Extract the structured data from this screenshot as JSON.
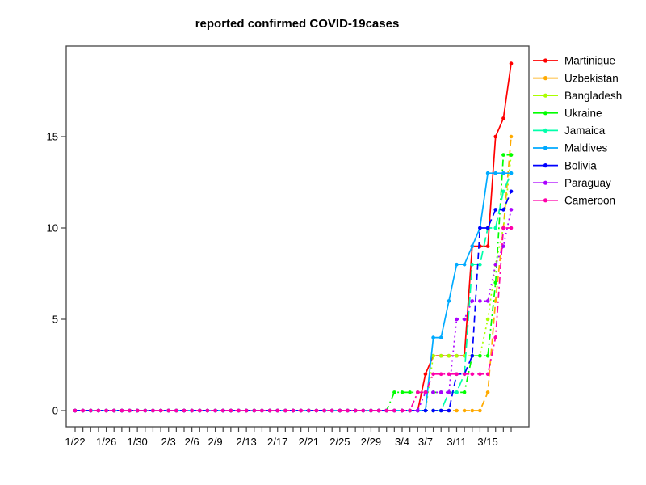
{
  "chart_data": {
    "type": "line",
    "title": "reported confirmed COVID-19cases",
    "xlabel": "",
    "ylabel": "",
    "grid": false,
    "legend_position": "right-outside",
    "marker": "filled-circle",
    "axis_color": "#444444",
    "text_color": "#000000",
    "yticks": [
      0,
      5,
      10,
      15
    ],
    "ylim": [
      0,
      20
    ],
    "x": [
      "1/22",
      "1/23",
      "1/24",
      "1/25",
      "1/26",
      "1/27",
      "1/28",
      "1/29",
      "1/30",
      "1/31",
      "2/1",
      "2/2",
      "2/3",
      "2/4",
      "2/5",
      "2/6",
      "2/7",
      "2/8",
      "2/9",
      "2/10",
      "2/11",
      "2/12",
      "2/13",
      "2/14",
      "2/15",
      "2/16",
      "2/17",
      "2/18",
      "2/19",
      "2/20",
      "2/21",
      "2/22",
      "2/23",
      "2/24",
      "2/25",
      "2/26",
      "2/27",
      "2/28",
      "2/29",
      "3/1",
      "3/2",
      "3/3",
      "3/4",
      "3/5",
      "3/6",
      "3/7",
      "3/8",
      "3/9",
      "3/10",
      "3/11",
      "3/12",
      "3/13",
      "3/14",
      "3/15",
      "3/16",
      "3/17",
      "3/18"
    ],
    "x_tick_labels": [
      "1/22",
      "1/26",
      "1/30",
      "2/3",
      "2/6",
      "2/9",
      "2/13",
      "2/17",
      "2/21",
      "2/25",
      "2/29",
      "3/4",
      "3/7",
      "3/11",
      "3/15"
    ],
    "series": [
      {
        "name": "Martinique",
        "color": "#FF0000",
        "line_style": "solid",
        "values": [
          0,
          0,
          0,
          0,
          0,
          0,
          0,
          0,
          0,
          0,
          0,
          0,
          0,
          0,
          0,
          0,
          0,
          0,
          0,
          0,
          0,
          0,
          0,
          0,
          0,
          0,
          0,
          0,
          0,
          0,
          0,
          0,
          0,
          0,
          0,
          0,
          0,
          0,
          0,
          0,
          0,
          0,
          0,
          0,
          0,
          2,
          3,
          3,
          3,
          3,
          3,
          9,
          9,
          9,
          15,
          16,
          19
        ]
      },
      {
        "name": "Uzbekistan",
        "color": "#FFAA00",
        "line_style": "dashed",
        "values": [
          0,
          0,
          0,
          0,
          0,
          0,
          0,
          0,
          0,
          0,
          0,
          0,
          0,
          0,
          0,
          0,
          0,
          0,
          0,
          0,
          0,
          0,
          0,
          0,
          0,
          0,
          0,
          0,
          0,
          0,
          0,
          0,
          0,
          0,
          0,
          0,
          0,
          0,
          0,
          0,
          0,
          0,
          0,
          0,
          0,
          0,
          0,
          0,
          0,
          0,
          0,
          0,
          0,
          1,
          6,
          10,
          15
        ]
      },
      {
        "name": "Bangladesh",
        "color": "#AAFF00",
        "line_style": "dotted",
        "values": [
          0,
          0,
          0,
          0,
          0,
          0,
          0,
          0,
          0,
          0,
          0,
          0,
          0,
          0,
          0,
          0,
          0,
          0,
          0,
          0,
          0,
          0,
          0,
          0,
          0,
          0,
          0,
          0,
          0,
          0,
          0,
          0,
          0,
          0,
          0,
          0,
          0,
          0,
          0,
          0,
          0,
          0,
          0,
          0,
          0,
          0,
          3,
          3,
          3,
          3,
          3,
          3,
          3,
          5,
          8,
          10,
          14
        ]
      },
      {
        "name": "Ukraine",
        "color": "#00FF00",
        "line_style": "dotdash",
        "values": [
          0,
          0,
          0,
          0,
          0,
          0,
          0,
          0,
          0,
          0,
          0,
          0,
          0,
          0,
          0,
          0,
          0,
          0,
          0,
          0,
          0,
          0,
          0,
          0,
          0,
          0,
          0,
          0,
          0,
          0,
          0,
          0,
          0,
          0,
          0,
          0,
          0,
          0,
          0,
          0,
          0,
          1,
          1,
          1,
          1,
          1,
          1,
          1,
          1,
          1,
          1,
          3,
          3,
          3,
          7,
          14,
          14
        ]
      },
      {
        "name": "Jamaica",
        "color": "#00FFAA",
        "line_style": "longdash",
        "values": [
          0,
          0,
          0,
          0,
          0,
          0,
          0,
          0,
          0,
          0,
          0,
          0,
          0,
          0,
          0,
          0,
          0,
          0,
          0,
          0,
          0,
          0,
          0,
          0,
          0,
          0,
          0,
          0,
          0,
          0,
          0,
          0,
          0,
          0,
          0,
          0,
          0,
          0,
          0,
          0,
          0,
          0,
          0,
          0,
          0,
          0,
          0,
          0,
          1,
          1,
          2,
          8,
          8,
          10,
          10,
          12,
          13
        ]
      },
      {
        "name": "Maldives",
        "color": "#00AAFF",
        "line_style": "solid",
        "values": [
          0,
          0,
          0,
          0,
          0,
          0,
          0,
          0,
          0,
          0,
          0,
          0,
          0,
          0,
          0,
          0,
          0,
          0,
          0,
          0,
          0,
          0,
          0,
          0,
          0,
          0,
          0,
          0,
          0,
          0,
          0,
          0,
          0,
          0,
          0,
          0,
          0,
          0,
          0,
          0,
          0,
          0,
          0,
          0,
          0,
          0,
          4,
          4,
          6,
          8,
          8,
          9,
          10,
          13,
          13,
          13,
          13
        ]
      },
      {
        "name": "Bolivia",
        "color": "#0000FF",
        "line_style": "dashed",
        "values": [
          0,
          0,
          0,
          0,
          0,
          0,
          0,
          0,
          0,
          0,
          0,
          0,
          0,
          0,
          0,
          0,
          0,
          0,
          0,
          0,
          0,
          0,
          0,
          0,
          0,
          0,
          0,
          0,
          0,
          0,
          0,
          0,
          0,
          0,
          0,
          0,
          0,
          0,
          0,
          0,
          0,
          0,
          0,
          0,
          0,
          0,
          0,
          0,
          0,
          2,
          2,
          3,
          10,
          10,
          11,
          11,
          12
        ]
      },
      {
        "name": "Paraguay",
        "color": "#AA00FF",
        "line_style": "dotted",
        "values": [
          0,
          0,
          0,
          0,
          0,
          0,
          0,
          0,
          0,
          0,
          0,
          0,
          0,
          0,
          0,
          0,
          0,
          0,
          0,
          0,
          0,
          0,
          0,
          0,
          0,
          0,
          0,
          0,
          0,
          0,
          0,
          0,
          0,
          0,
          0,
          0,
          0,
          0,
          0,
          0,
          0,
          0,
          0,
          0,
          0,
          1,
          1,
          1,
          1,
          5,
          5,
          6,
          6,
          6,
          8,
          9,
          11
        ]
      },
      {
        "name": "Cameroon",
        "color": "#FF00AA",
        "line_style": "dotdash",
        "values": [
          0,
          0,
          0,
          0,
          0,
          0,
          0,
          0,
          0,
          0,
          0,
          0,
          0,
          0,
          0,
          0,
          0,
          0,
          0,
          0,
          0,
          0,
          0,
          0,
          0,
          0,
          0,
          0,
          0,
          0,
          0,
          0,
          0,
          0,
          0,
          0,
          0,
          0,
          0,
          0,
          0,
          0,
          0,
          0,
          1,
          1,
          2,
          2,
          2,
          2,
          2,
          2,
          2,
          2,
          4,
          10,
          10
        ]
      }
    ]
  }
}
